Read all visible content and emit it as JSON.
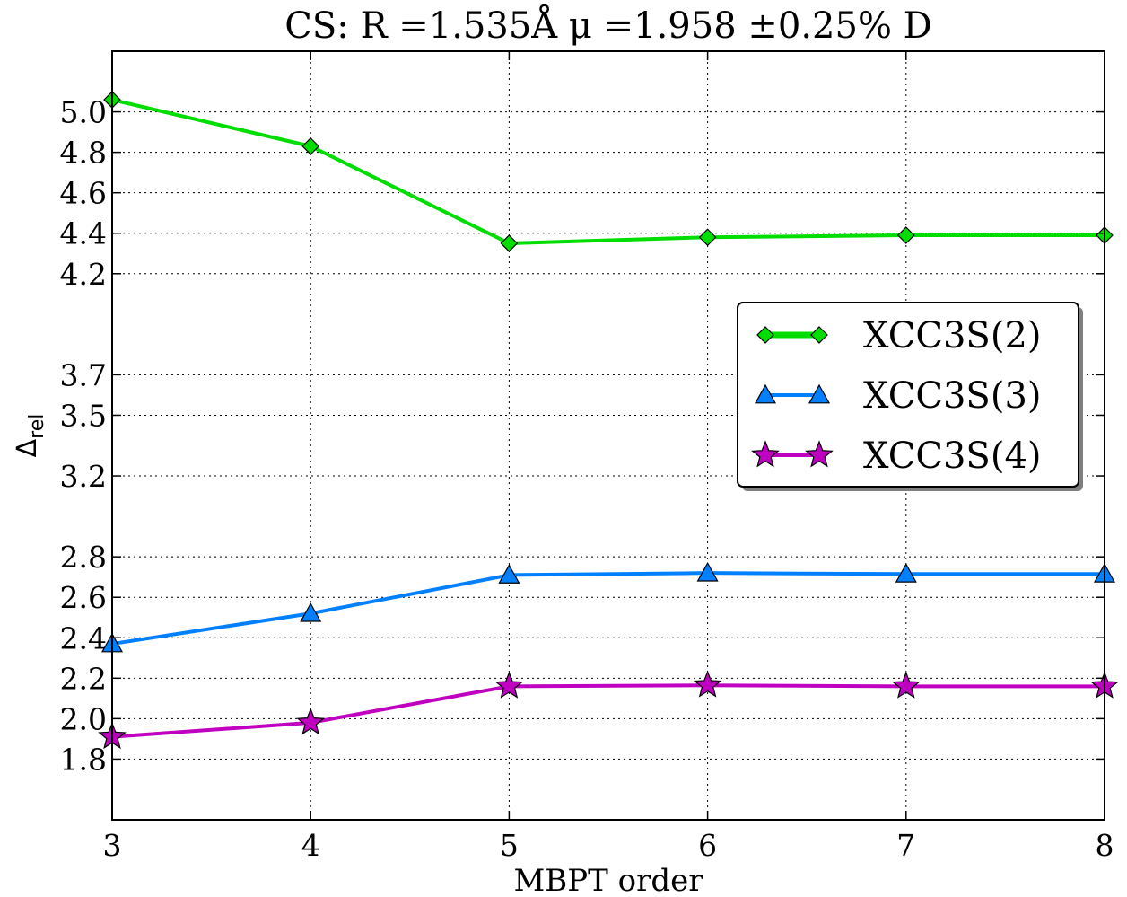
{
  "chart_data": {
    "type": "line",
    "title": "CS: R =1.535Å μ =1.958 ±0.25% D",
    "xlabel": "MBPT order",
    "ylabel": "Δ",
    "ylabel_sub": "rel",
    "xlim": [
      3,
      8
    ],
    "ylim": [
      1.5,
      5.3
    ],
    "x": [
      3,
      4,
      5,
      6,
      7,
      8
    ],
    "x_ticks": [
      "3",
      "4",
      "5",
      "6",
      "7",
      "8"
    ],
    "y_ticks": [
      "1.8",
      "2.0",
      "2.2",
      "2.4",
      "2.6",
      "2.8",
      "3.2",
      "3.5",
      "3.7",
      "4.2",
      "4.4",
      "4.6",
      "4.8",
      "5.0"
    ],
    "grid": true,
    "legend_position": "right",
    "series": [
      {
        "name": "XCC3S(2)",
        "values": [
          5.06,
          4.83,
          4.35,
          4.38,
          4.39,
          4.39
        ],
        "color": "#00dd00",
        "marker": "diamond"
      },
      {
        "name": "XCC3S(3)",
        "values": [
          2.37,
          2.52,
          2.71,
          2.72,
          2.715,
          2.715
        ],
        "color": "#0080ff",
        "marker": "triangle"
      },
      {
        "name": "XCC3S(4)",
        "values": [
          1.91,
          1.98,
          2.16,
          2.165,
          2.16,
          2.16
        ],
        "color": "#c000c0",
        "marker": "star"
      }
    ]
  }
}
